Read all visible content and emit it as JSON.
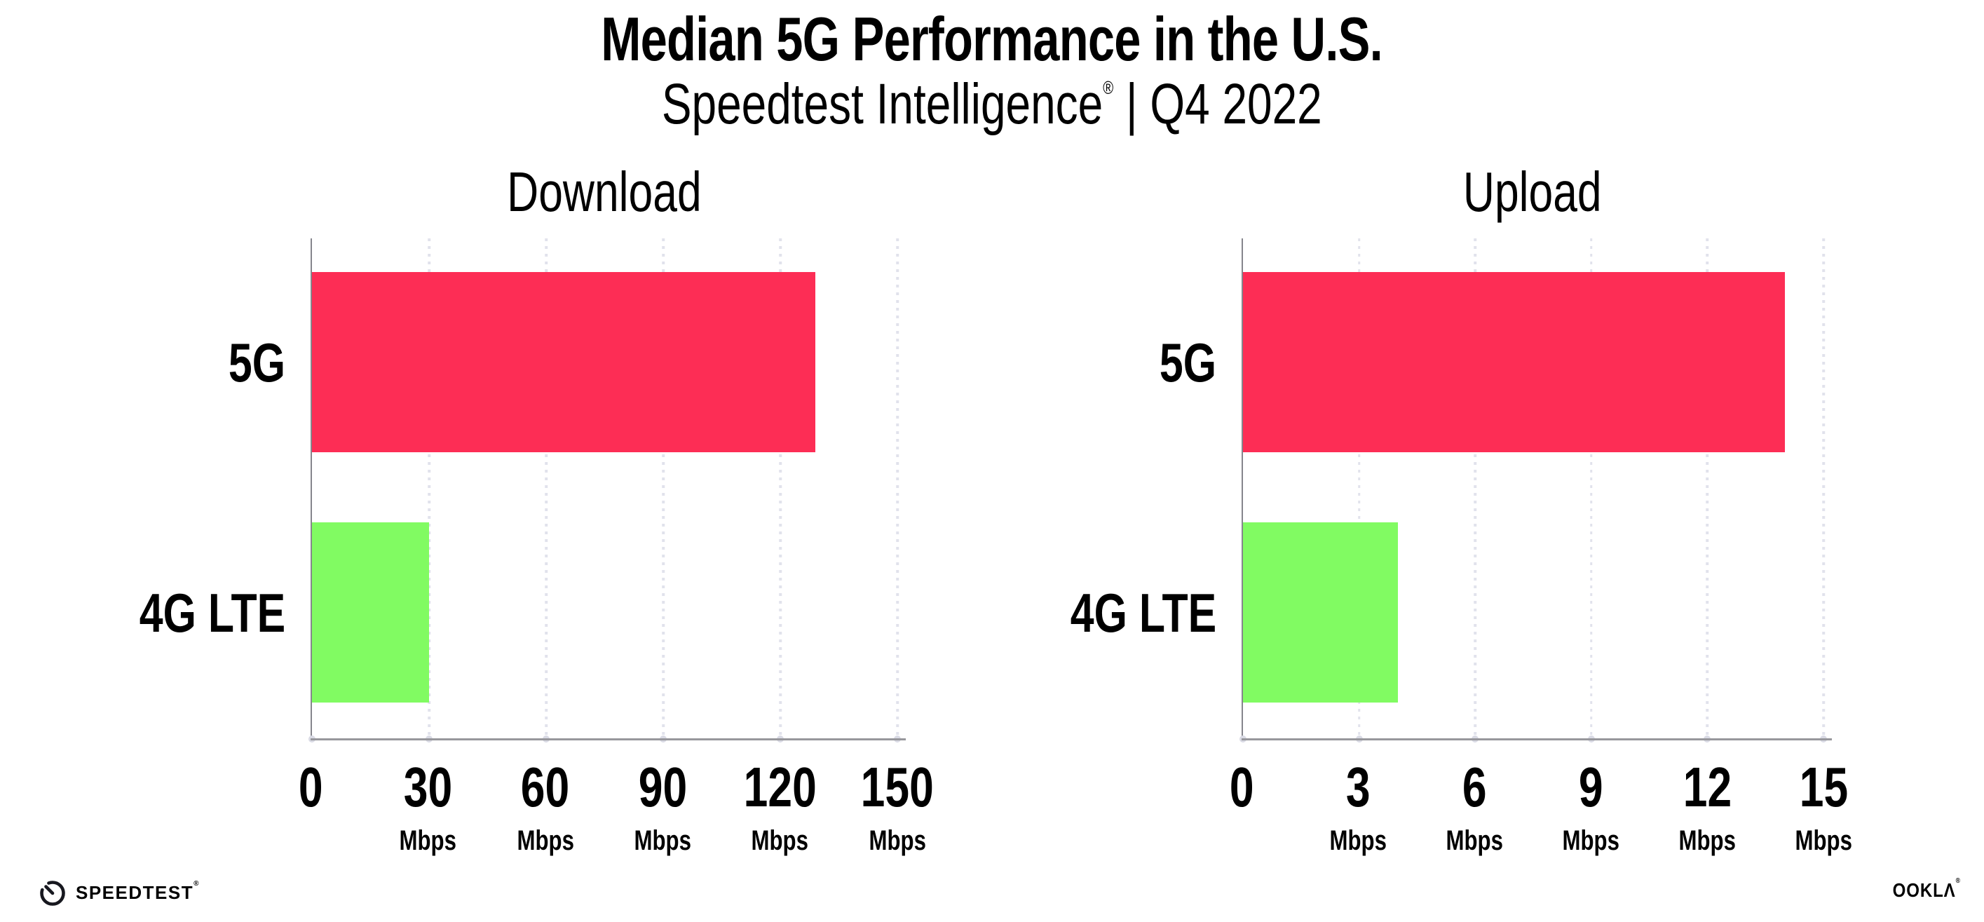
{
  "header": {
    "title": "Median 5G Performance in the U.S.",
    "subtitle_brand": "Speedtest Intelligence",
    "subtitle_reg": "®",
    "subtitle_sep": " | ",
    "subtitle_period": "Q4 2022"
  },
  "chart_data": [
    {
      "type": "bar",
      "orientation": "horizontal",
      "title": "Download",
      "categories": [
        "5G",
        "4G LTE"
      ],
      "values": [
        129,
        30
      ],
      "unit": "Mbps",
      "xlim": [
        0,
        150
      ],
      "xticks": [
        0,
        30,
        60,
        90,
        120,
        150
      ],
      "bar_colors": [
        "#FD2D55",
        "#81FB62"
      ],
      "grid": "dotted-vertical",
      "legend": "none"
    },
    {
      "type": "bar",
      "orientation": "horizontal",
      "title": "Upload",
      "categories": [
        "5G",
        "4G LTE"
      ],
      "values": [
        14,
        4
      ],
      "unit": "Mbps",
      "xlim": [
        0,
        15
      ],
      "xticks": [
        0,
        3,
        6,
        9,
        12,
        15
      ],
      "bar_colors": [
        "#FD2D55",
        "#81FB62"
      ],
      "grid": "dotted-vertical",
      "legend": "none"
    }
  ],
  "colors": {
    "bar_5g": "#FD2D55",
    "bar_4g_lte": "#81FB62",
    "axis": "#97979c",
    "gridline": "#e1e2ec",
    "text": "#000000"
  },
  "footer": {
    "speedtest_label": "SPEEDTEST",
    "speedtest_mark": "®",
    "ookla_label": "OOKLΛ",
    "ookla_mark": "®"
  }
}
